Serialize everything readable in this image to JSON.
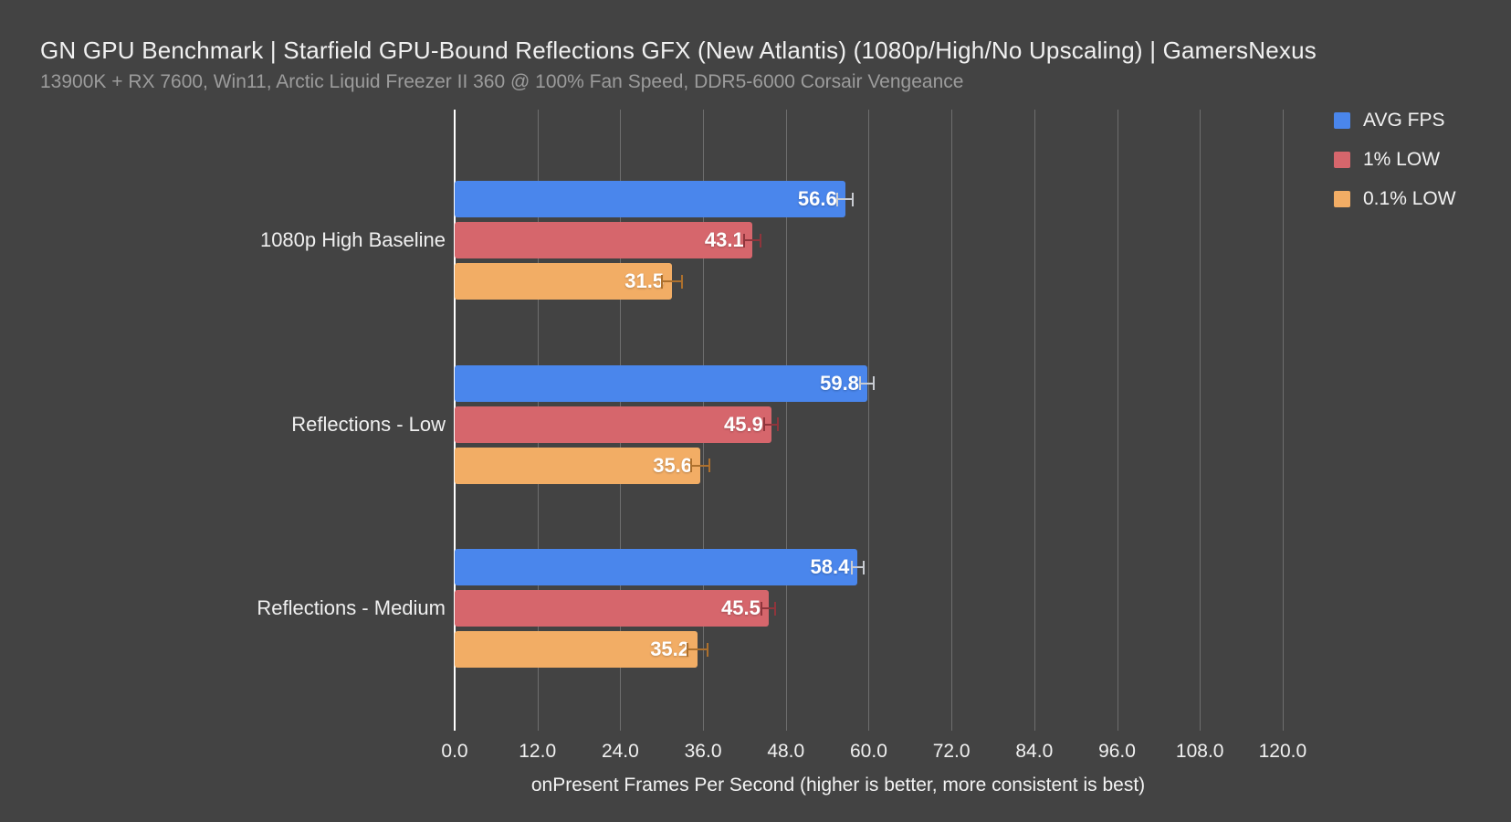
{
  "page": {
    "background_color": "#434343"
  },
  "header": {
    "title": "GN GPU Benchmark | Starfield GPU-Bound Reflections GFX (New Atlantis) (1080p/High/No Upscaling) | GamersNexus",
    "subtitle": "13900K + RX 7600, Win11, Arctic Liquid Freezer II 360 @ 100% Fan Speed, DDR5-6000 Corsair Vengeance"
  },
  "legend": [
    {
      "label": "AVG FPS",
      "color": "#4a86ec"
    },
    {
      "label": "1% LOW",
      "color": "#d6666c"
    },
    {
      "label": "0.1% LOW",
      "color": "#f2ad65"
    }
  ],
  "chart_data": {
    "type": "bar",
    "orientation": "horizontal",
    "title": "GN GPU Benchmark | Starfield GPU-Bound Reflections GFX (New Atlantis) (1080p/High/No Upscaling) | GamersNexus",
    "subtitle": "13900K + RX 7600, Win11, Arctic Liquid Freezer II 360 @ 100% Fan Speed, DDR5-6000 Corsair Vengeance",
    "categories": [
      "1080p High Baseline",
      "Reflections - Low",
      "Reflections - Medium"
    ],
    "series": [
      {
        "name": "AVG FPS",
        "color": "#4a86ec",
        "error_color": "#c9ccd2",
        "values": [
          56.6,
          59.8,
          58.4
        ],
        "errors": [
          1.1,
          1.0,
          0.9
        ]
      },
      {
        "name": "1% LOW",
        "color": "#d6666c",
        "error_color": "#8f353c",
        "values": [
          43.1,
          45.9,
          45.5
        ],
        "errors": [
          1.2,
          1.0,
          1.0
        ]
      },
      {
        "name": "0.1% LOW",
        "color": "#f2ad65",
        "error_color": "#ad702d",
        "values": [
          31.5,
          35.6,
          35.2
        ],
        "errors": [
          1.5,
          1.3,
          1.5
        ]
      }
    ],
    "xlabel": "onPresent Frames Per Second (higher is better, more consistent is best)",
    "xlim": [
      0,
      122
    ],
    "xticks": [
      "0.0",
      "12.0",
      "24.0",
      "36.0",
      "48.0",
      "60.0",
      "72.0",
      "84.0",
      "96.0",
      "108.0",
      "120.0"
    ],
    "grid": true,
    "gridline_color": "#6e6e6e",
    "zero_line_color": "#ffffff",
    "legend_position": "top-right",
    "value_label_color": "#ffffff"
  }
}
